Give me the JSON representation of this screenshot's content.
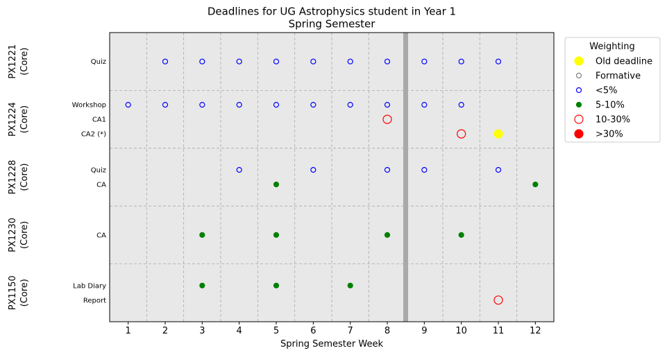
{
  "chart_data": {
    "type": "scatter",
    "title": "Deadlines for UG Astrophysics student in Year 1",
    "subtitle": "Spring Semester",
    "xlabel": "Spring Semester Week",
    "x_ticks": [
      "1",
      "2",
      "3",
      "4",
      "5",
      "6",
      "7",
      "8",
      "9",
      "10",
      "11",
      "12"
    ],
    "xlim": [
      0.5,
      12.5
    ],
    "grid": true,
    "semester_break_week": 8.5,
    "legend": {
      "title": "Weighting",
      "placement": "outside-right",
      "entries": [
        {
          "key": "old",
          "label": "Old deadline"
        },
        {
          "key": "formative",
          "label": "Formative"
        },
        {
          "key": "lt5",
          "label": "<5%"
        },
        {
          "key": "5to10",
          "label": "5-10%"
        },
        {
          "key": "10to30",
          "label": "10-30%"
        },
        {
          "key": "gt30",
          "label": ">30%"
        }
      ]
    },
    "styles": {
      "old": {
        "fill": "#ffff00",
        "stroke": "#ffff00",
        "r": 6
      },
      "formative": {
        "fill": "none",
        "stroke": "#808080",
        "r": 3.5
      },
      "lt5": {
        "fill": "none",
        "stroke": "#0000ff",
        "r": 3.5
      },
      "5to10": {
        "fill": "#008000",
        "stroke": "#008000",
        "r": 3.5
      },
      "10to30": {
        "fill": "none",
        "stroke": "#ff0000",
        "r": 6
      },
      "gt30": {
        "fill": "#ff0000",
        "stroke": "#ff0000",
        "r": 6
      }
    },
    "modules": [
      {
        "code": "PX1221",
        "type": "(Core)",
        "rows": [
          {
            "label": "Quiz",
            "points": [
              {
                "week": 2,
                "w": "lt5"
              },
              {
                "week": 3,
                "w": "lt5"
              },
              {
                "week": 4,
                "w": "lt5"
              },
              {
                "week": 5,
                "w": "lt5"
              },
              {
                "week": 6,
                "w": "lt5"
              },
              {
                "week": 7,
                "w": "lt5"
              },
              {
                "week": 8,
                "w": "lt5"
              },
              {
                "week": 9,
                "w": "lt5"
              },
              {
                "week": 10,
                "w": "lt5"
              },
              {
                "week": 11,
                "w": "lt5"
              }
            ]
          }
        ]
      },
      {
        "code": "PX1224",
        "type": "(Core)",
        "rows": [
          {
            "label": "Workshop",
            "points": [
              {
                "week": 1,
                "w": "lt5"
              },
              {
                "week": 2,
                "w": "lt5"
              },
              {
                "week": 3,
                "w": "lt5"
              },
              {
                "week": 4,
                "w": "lt5"
              },
              {
                "week": 5,
                "w": "lt5"
              },
              {
                "week": 6,
                "w": "lt5"
              },
              {
                "week": 7,
                "w": "lt5"
              },
              {
                "week": 8,
                "w": "lt5"
              },
              {
                "week": 9,
                "w": "lt5"
              },
              {
                "week": 10,
                "w": "lt5"
              }
            ]
          },
          {
            "label": "CA1",
            "points": [
              {
                "week": 8,
                "w": "10to30"
              }
            ]
          },
          {
            "label": "CA2 (*)",
            "points": [
              {
                "week": 10,
                "w": "10to30"
              },
              {
                "week": 11,
                "w": "old"
              }
            ]
          }
        ]
      },
      {
        "code": "PX1228",
        "type": "(Core)",
        "rows": [
          {
            "label": "Quiz",
            "points": [
              {
                "week": 4,
                "w": "lt5"
              },
              {
                "week": 6,
                "w": "lt5"
              },
              {
                "week": 8,
                "w": "lt5"
              },
              {
                "week": 9,
                "w": "lt5"
              },
              {
                "week": 11,
                "w": "lt5"
              }
            ]
          },
          {
            "label": "CA",
            "points": [
              {
                "week": 5,
                "w": "5to10"
              },
              {
                "week": 12,
                "w": "5to10"
              }
            ]
          }
        ]
      },
      {
        "code": "PX1230",
        "type": "(Core)",
        "rows": [
          {
            "label": "CA",
            "points": [
              {
                "week": 3,
                "w": "5to10"
              },
              {
                "week": 5,
                "w": "5to10"
              },
              {
                "week": 8,
                "w": "5to10"
              },
              {
                "week": 10,
                "w": "5to10"
              }
            ]
          }
        ]
      },
      {
        "code": "PX1150",
        "type": "(Core)",
        "rows": [
          {
            "label": "Lab Diary",
            "points": [
              {
                "week": 3,
                "w": "5to10"
              },
              {
                "week": 5,
                "w": "5to10"
              },
              {
                "week": 7,
                "w": "5to10"
              }
            ]
          },
          {
            "label": "Report",
            "points": [
              {
                "week": 11,
                "w": "10to30"
              }
            ]
          }
        ]
      }
    ]
  }
}
